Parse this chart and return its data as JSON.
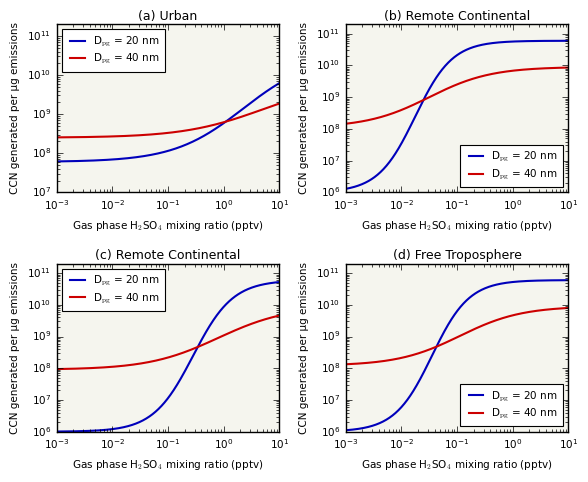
{
  "panels": [
    {
      "title": "(a) Urban",
      "legend_loc": "upper left",
      "ylim": [
        10000000.0,
        200000000000.0
      ],
      "yticks": [
        10000000.0,
        100000000.0,
        1000000000.0,
        10000000000.0,
        100000000000.0
      ],
      "blue": {
        "y_low": 60000000.0,
        "y_high": 32000000000.0,
        "inflect": 0.35,
        "steepness": 1.6
      },
      "red": {
        "y_low": 250000000.0,
        "y_high": 7000000000.0,
        "inflect": 0.7,
        "steepness": 1.4
      }
    },
    {
      "title": "(b) Remote Continental",
      "legend_loc": "lower right",
      "ylim": [
        1000000.0,
        200000000000.0
      ],
      "yticks": [
        1000000.0,
        10000000.0,
        100000000.0,
        1000000000.0,
        10000000000.0,
        100000000000.0
      ],
      "blue": {
        "y_low": 1000000.0,
        "y_high": 60000000000.0,
        "inflect": -1.75,
        "steepness": 3.0
      },
      "red": {
        "y_low": 110000000.0,
        "y_high": 9000000000.0,
        "inflect": -1.5,
        "steepness": 1.8
      }
    },
    {
      "title": "(c) Remote Continental",
      "legend_loc": "upper left",
      "ylim": [
        1000000.0,
        200000000000.0
      ],
      "yticks": [
        1000000.0,
        10000000.0,
        100000000.0,
        1000000000.0,
        10000000000.0,
        100000000000.0
      ],
      "blue": {
        "y_low": 1000000.0,
        "y_high": 60000000000.0,
        "inflect": -0.55,
        "steepness": 2.8
      },
      "red": {
        "y_low": 90000000.0,
        "y_high": 9000000000.0,
        "inflect": -0.1,
        "steepness": 1.6
      }
    },
    {
      "title": "(d) Free Troposphere",
      "legend_loc": "lower right",
      "ylim": [
        1000000.0,
        200000000000.0
      ],
      "yticks": [
        1000000.0,
        10000000.0,
        100000000.0,
        1000000000.0,
        10000000000.0,
        100000000000.0
      ],
      "blue": {
        "y_low": 1000000.0,
        "y_high": 60000000000.0,
        "inflect": -1.45,
        "steepness": 3.0
      },
      "red": {
        "y_low": 120000000.0,
        "y_high": 9000000000.0,
        "inflect": -0.95,
        "steepness": 1.8
      }
    }
  ],
  "blue_color": "#0000bb",
  "red_color": "#cc0000",
  "xlabel": "Gas phase H$_2$SO$_4$ mixing ratio (pptv)",
  "ylabel": "CCN generated per μg emissions",
  "xlim_log": [
    -3,
    1
  ],
  "line_width": 1.5,
  "label_blue": "D$_\\mathrm{pg}$ = 20 nm",
  "label_red": "D$_\\mathrm{pg}$ = 40 nm",
  "bg_color": "#f5f5ee",
  "axes_bg": "#f5f5ee"
}
